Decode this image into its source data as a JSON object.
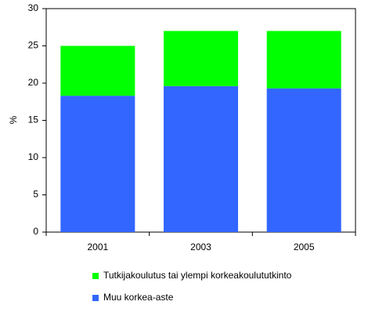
{
  "chart_data": {
    "type": "stacked_bar",
    "y_label": "%",
    "categories": [
      "2001",
      "2003",
      "2005"
    ],
    "series": [
      {
        "name": "Muu korkea-aste",
        "color": "#3366ff",
        "values": [
          18.3,
          19.6,
          19.3
        ]
      },
      {
        "name": "Tutkijakoulutus tai ylempi korkeakoulututkinto",
        "color": "#00ff00",
        "values": [
          6.7,
          7.4,
          7.7
        ]
      }
    ],
    "ylim": [
      0,
      30
    ],
    "yticks": [
      0,
      5,
      10,
      15,
      20,
      25,
      30
    ],
    "grid": false
  }
}
